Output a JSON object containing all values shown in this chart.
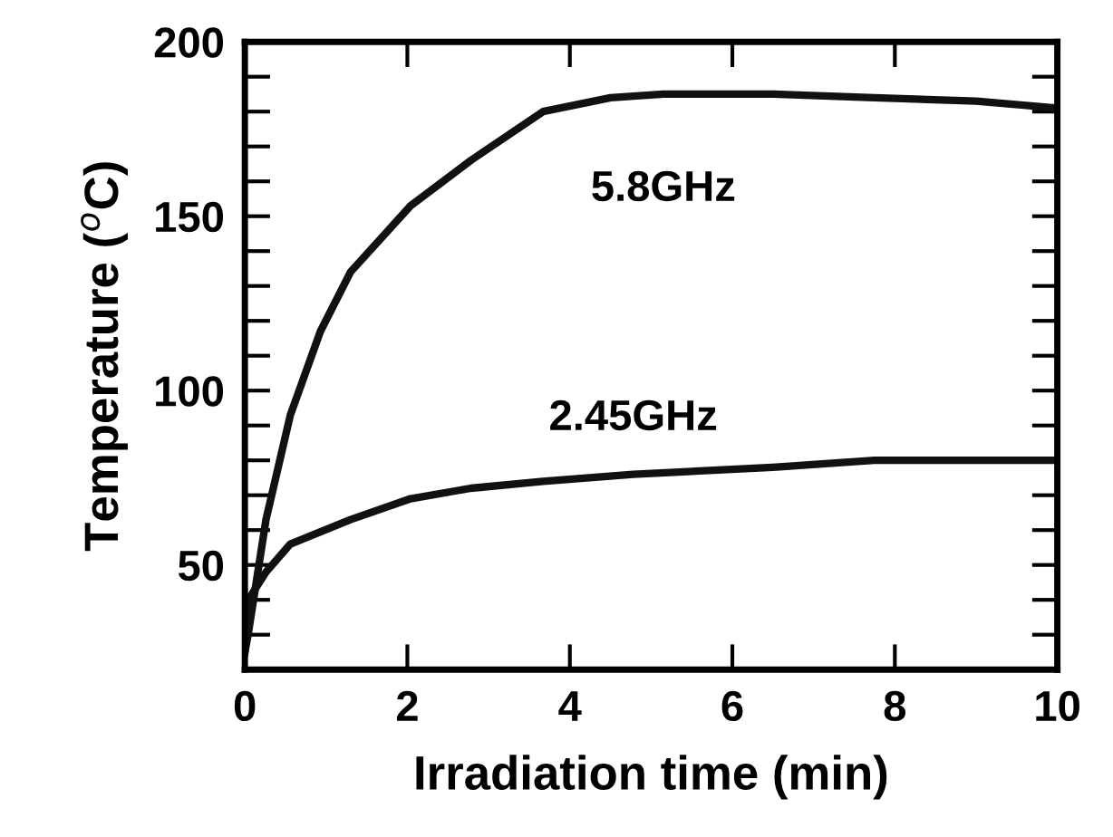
{
  "chart_data": {
    "type": "line",
    "xlabel": "Irradiation time (min)",
    "ylabel": "Temperature ($^{o}$C)",
    "xlim": [
      0,
      10
    ],
    "ylim": [
      20,
      200
    ],
    "xticks": [
      0,
      2,
      4,
      6,
      8,
      10
    ],
    "yticks": [
      {
        "value": 20,
        "label": null
      },
      {
        "value": 30,
        "label": null
      },
      {
        "value": 40,
        "label": null
      },
      50,
      {
        "value": 60,
        "label": null
      },
      {
        "value": 70,
        "label": null
      },
      {
        "value": 80,
        "label": null
      },
      {
        "value": 90,
        "label": null
      },
      100,
      {
        "value": 110,
        "label": null
      },
      {
        "value": 120,
        "label": null
      },
      {
        "value": 130,
        "label": null
      },
      {
        "value": 140,
        "label": null
      },
      150,
      {
        "value": 160,
        "label": null
      },
      {
        "value": 170,
        "label": null
      },
      {
        "value": 180,
        "label": null
      },
      {
        "value": 190,
        "label": null
      },
      200
    ],
    "grid": false,
    "legend": false,
    "marker": "none",
    "line_style": "solid",
    "series": [
      {
        "name": "5.8GHz",
        "color": "#111111",
        "x": [
          0,
          0.04,
          0.26,
          0.56,
          0.93,
          1.3,
          2.04,
          2.78,
          3.67,
          4.5,
          5.15,
          6.5,
          7.75,
          9,
          10
        ],
        "values": [
          25,
          30,
          63,
          93,
          117,
          134,
          153,
          166,
          180,
          184,
          185,
          185,
          184,
          183,
          181
        ]
      },
      {
        "name": "2.45GHz",
        "color": "#111111",
        "x": [
          0,
          0.07,
          0.26,
          0.56,
          1.3,
          2.04,
          2.78,
          3.67,
          4.78,
          6.5,
          7.75,
          9,
          10
        ],
        "values": [
          25,
          41,
          48,
          56,
          63,
          69,
          72,
          74,
          76,
          78,
          80,
          80,
          80
        ]
      }
    ]
  }
}
